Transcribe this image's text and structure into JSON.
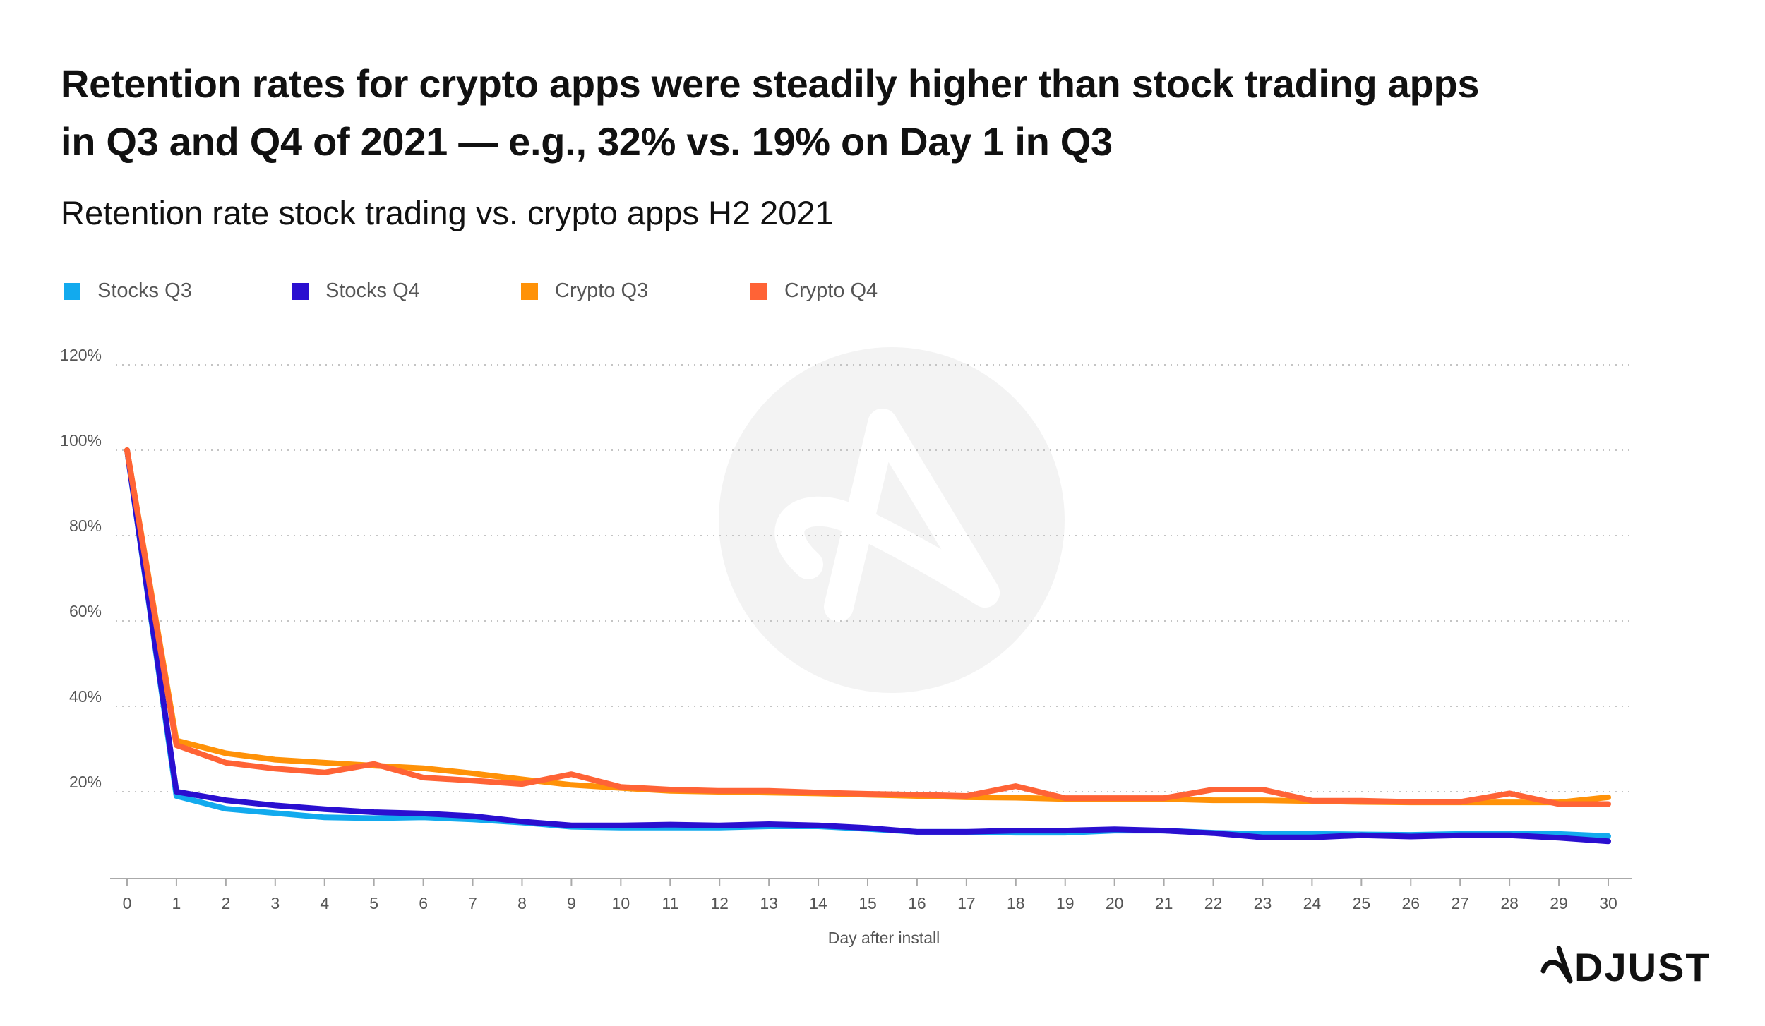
{
  "title_lines": [
    "Retention rates for crypto apps were steadily higher than stock trading apps",
    "in Q3 and Q4 of 2021 — e.g., 32% vs. 19% on Day 1 in Q3"
  ],
  "brand": "ADJUST",
  "chart_data": {
    "type": "line",
    "title": "Retention rate stock trading vs. crypto apps H2 2021",
    "xlabel": "Day after install",
    "ylabel": "",
    "x": [
      0,
      1,
      2,
      3,
      4,
      5,
      6,
      7,
      8,
      9,
      10,
      11,
      12,
      13,
      14,
      15,
      16,
      17,
      18,
      19,
      20,
      21,
      22,
      23,
      24,
      25,
      26,
      27,
      28,
      29,
      30
    ],
    "ylim": [
      0,
      120
    ],
    "yticks": [
      20,
      40,
      60,
      80,
      100,
      120
    ],
    "ytick_labels": [
      "20%",
      "40%",
      "60%",
      "80%",
      "100%",
      "120%"
    ],
    "grid": "horizontal-dotted",
    "legend_position": "top-left",
    "series": [
      {
        "name": "Stocks Q3",
        "color": "#12AAEE",
        "values": [
          100,
          19,
          16,
          15,
          14,
          13.8,
          14,
          13.5,
          12.8,
          11.8,
          11.6,
          11.6,
          11.6,
          11.9,
          11.9,
          11.3,
          10.6,
          10.6,
          10.4,
          10.4,
          10.9,
          10.9,
          10.4,
          10.1,
          10.1,
          10,
          9.9,
          10.1,
          10.2,
          10.1,
          9.6
        ]
      },
      {
        "name": "Stocks Q4",
        "color": "#2A0FD0",
        "values": [
          100,
          20,
          18,
          16.8,
          15.9,
          15.2,
          14.9,
          14.3,
          13,
          12.1,
          12.1,
          12.3,
          12.1,
          12.4,
          12.1,
          11.5,
          10.6,
          10.6,
          10.9,
          10.9,
          11.2,
          10.9,
          10.3,
          9.3,
          9.3,
          9.8,
          9.5,
          9.8,
          9.8,
          9.2,
          8.4
        ]
      },
      {
        "name": "Crypto Q3",
        "color": "#FF9208",
        "values": [
          100,
          32,
          29,
          27.5,
          26.8,
          26.1,
          25.5,
          24.3,
          22.9,
          21.6,
          20.9,
          20.2,
          20,
          19.8,
          19.6,
          19.3,
          19,
          18.7,
          18.6,
          18.3,
          18.3,
          18.3,
          18,
          18,
          17.8,
          17.6,
          17.5,
          17.5,
          17.5,
          17.5,
          18.7
        ]
      },
      {
        "name": "Crypto Q4",
        "color": "#FF6336",
        "values": [
          100,
          30.9,
          26.8,
          25.4,
          24.5,
          26.5,
          23.3,
          22.6,
          21.8,
          24.1,
          21.1,
          20.5,
          20.2,
          20.2,
          19.8,
          19.5,
          19.3,
          19,
          21.3,
          18.5,
          18.5,
          18.5,
          20.5,
          20.5,
          17.9,
          17.9,
          17.6,
          17.6,
          19.6,
          17.1,
          17.1
        ]
      }
    ]
  }
}
